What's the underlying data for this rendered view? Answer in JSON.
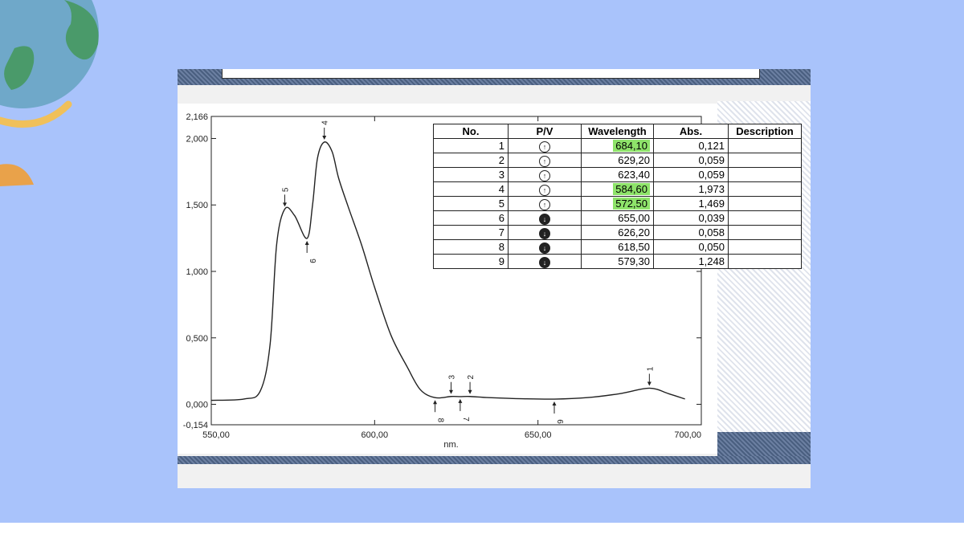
{
  "chart_data": {
    "type": "line",
    "xlabel": "nm.",
    "xlim": [
      550,
      700
    ],
    "ylim": [
      -0.154,
      2.166
    ],
    "x_ticks": [
      "550,00",
      "600,00",
      "650,00",
      "700,00"
    ],
    "y_ticks": [
      "-0,154",
      "0,000",
      "0,500",
      "1,000",
      "1,500",
      "2,000",
      "2,166"
    ],
    "series": [
      {
        "x": [
          550,
          560,
          565,
          568,
          570,
          572.5,
          575.5,
          579.3,
          581,
          582.5,
          584.6,
          587,
          589,
          592,
          596,
          600,
          605,
          610,
          614,
          618.5,
          623.4,
          626.2,
          629.2,
          635,
          645,
          655,
          665,
          675,
          684.1,
          690,
          695
        ],
        "y": [
          0.03,
          0.04,
          0.1,
          0.45,
          1.2,
          1.469,
          1.42,
          1.248,
          1.5,
          1.85,
          1.973,
          1.9,
          1.7,
          1.48,
          1.2,
          0.88,
          0.52,
          0.28,
          0.11,
          0.05,
          0.059,
          0.058,
          0.059,
          0.05,
          0.042,
          0.039,
          0.05,
          0.08,
          0.121,
          0.08,
          0.04
        ]
      }
    ],
    "peaks": [
      {
        "label": "1",
        "x": 684.1,
        "y": 0.121,
        "dir": "up"
      },
      {
        "label": "2",
        "x": 629.2,
        "y": 0.059,
        "dir": "up"
      },
      {
        "label": "3",
        "x": 623.4,
        "y": 0.059,
        "dir": "up"
      },
      {
        "label": "4",
        "x": 584.6,
        "y": 1.973,
        "dir": "up"
      },
      {
        "label": "5",
        "x": 572.5,
        "y": 1.469,
        "dir": "up"
      },
      {
        "label": "6",
        "x": 655.0,
        "y": 0.039,
        "dir": "down"
      },
      {
        "label": "7",
        "x": 626.2,
        "y": 0.058,
        "dir": "down"
      },
      {
        "label": "8",
        "x": 618.5,
        "y": 0.05,
        "dir": "down"
      },
      {
        "label": "9",
        "x": 579.3,
        "y": 1.248,
        "dir": "down"
      }
    ]
  },
  "table": {
    "headers": [
      "No.",
      "P/V",
      "Wavelength",
      "Abs.",
      "Description"
    ],
    "rows": [
      {
        "no": "1",
        "pv": "peak",
        "wl": "684,10",
        "abs": "0,121",
        "hl": true
      },
      {
        "no": "2",
        "pv": "peak",
        "wl": "629,20",
        "abs": "0,059",
        "hl": false
      },
      {
        "no": "3",
        "pv": "peak",
        "wl": "623,40",
        "abs": "0,059",
        "hl": false
      },
      {
        "no": "4",
        "pv": "peak",
        "wl": "584,60",
        "abs": "1,973",
        "hl": true
      },
      {
        "no": "5",
        "pv": "peak",
        "wl": "572,50",
        "abs": "1,469",
        "hl": true
      },
      {
        "no": "6",
        "pv": "valley",
        "wl": "655,00",
        "abs": "0,039",
        "hl": false
      },
      {
        "no": "7",
        "pv": "valley",
        "wl": "626,20",
        "abs": "0,058",
        "hl": false
      },
      {
        "no": "8",
        "pv": "valley",
        "wl": "618,50",
        "abs": "0,050",
        "hl": false
      },
      {
        "no": "9",
        "pv": "valley",
        "wl": "579,30",
        "abs": "1,248",
        "hl": false
      }
    ],
    "highlight_color": "#8ee36a"
  },
  "colors": {
    "background": "#a9c3fb",
    "globe_ocean": "#6fa8c9",
    "globe_land": "#4a9a6a",
    "stand": "#f0c05a"
  }
}
